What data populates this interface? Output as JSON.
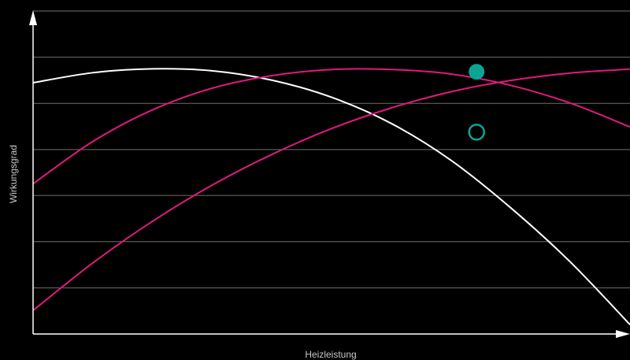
{
  "chart_data": {
    "type": "line",
    "title": "",
    "xlabel": "Heizleistung",
    "ylabel": "Wirkungsgrad",
    "xlim": [
      0,
      100
    ],
    "ylim": [
      0,
      100
    ],
    "grid": true,
    "gridlines_y": [
      0,
      14.3,
      28.6,
      42.9,
      57.1,
      71.4,
      85.7,
      100
    ],
    "tick_labels_shown": false,
    "series": [
      {
        "color": "#ffffff",
        "x": [
          0,
          10,
          20,
          30,
          40,
          50,
          60,
          70,
          80,
          90,
          100
        ],
        "y": [
          77.8,
          80.9,
          82.1,
          81.5,
          78.6,
          73.3,
          65.2,
          53.8,
          39.1,
          22.3,
          2.9
        ]
      },
      {
        "color": "#e0197d",
        "x": [
          0,
          10,
          20,
          30,
          40,
          50,
          60,
          70,
          80,
          90,
          100
        ],
        "y": [
          46.5,
          59.6,
          69.4,
          76.1,
          80.0,
          81.9,
          81.9,
          80.5,
          77.0,
          71.5,
          64.1
        ]
      },
      {
        "color": "#e0197d",
        "x": [
          0,
          10,
          20,
          30,
          40,
          50,
          60,
          70,
          80,
          90,
          100
        ],
        "y": [
          7.3,
          22.0,
          34.9,
          46.1,
          55.6,
          63.6,
          70.0,
          75.0,
          78.5,
          80.8,
          82.0
        ]
      }
    ],
    "markers": [
      {
        "style": "filled",
        "color": "#0aa595",
        "x": 74.3,
        "y": 81.2
      },
      {
        "style": "hollow",
        "color": "#0aa595",
        "x": 74.3,
        "y": 62.5
      }
    ]
  }
}
